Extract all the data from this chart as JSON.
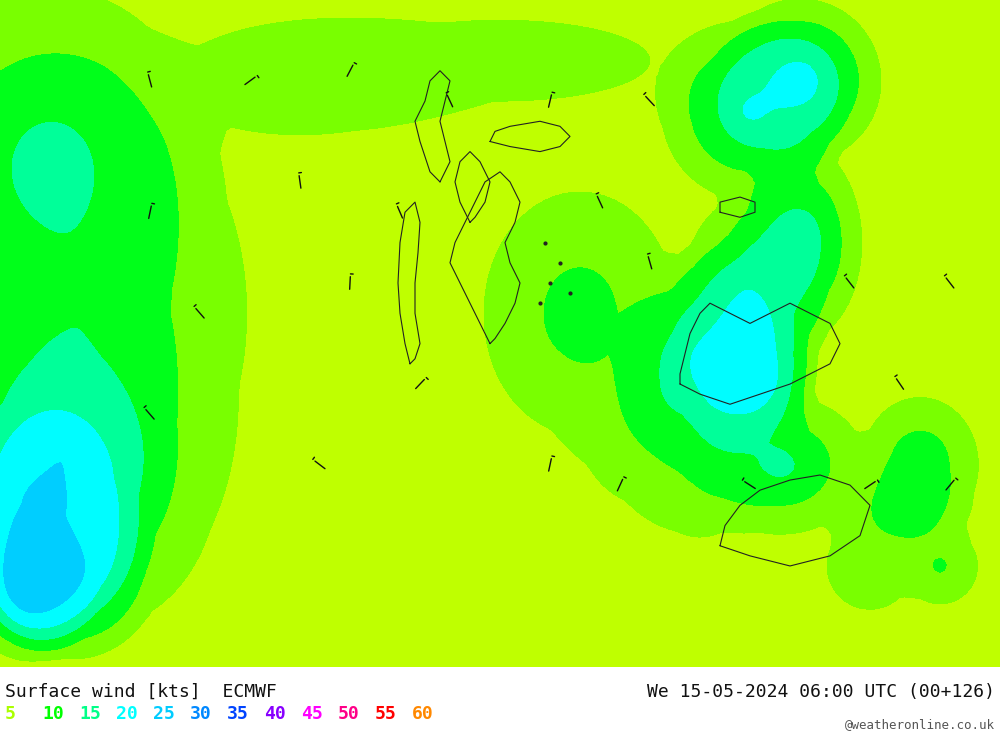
{
  "title_left": "Surface wind [kts]  ECMWF",
  "title_right": "We 15-05-2024 06:00 UTC (00+126)",
  "credit": "@weatheronline.co.uk",
  "legend_values": [
    5,
    10,
    15,
    20,
    25,
    30,
    35,
    40,
    45,
    50,
    55,
    60
  ],
  "legend_colors": [
    "#aaff00",
    "#00ff00",
    "#00ff88",
    "#00ffff",
    "#00ccff",
    "#0088ff",
    "#0044ff",
    "#8800ff",
    "#ff00ff",
    "#ff0088",
    "#ff0000",
    "#ff8800"
  ],
  "colormap_colors": [
    "#ffff00",
    "#ccff00",
    "#aaff00",
    "#00ff00",
    "#00ff88",
    "#00ffff",
    "#00ccff",
    "#0088ff",
    "#0044ff",
    "#8800ff",
    "#ff00ff",
    "#ff0088"
  ],
  "colormap_levels": [
    0,
    5,
    10,
    15,
    20,
    25,
    30,
    35,
    40,
    45,
    50,
    55,
    60
  ],
  "fig_width": 10.0,
  "fig_height": 7.33,
  "background_color": "#ffff00",
  "border_color": "#222222",
  "text_color": "#111111",
  "font_size_title": 13,
  "font_size_legend": 13,
  "font_size_credit": 9
}
